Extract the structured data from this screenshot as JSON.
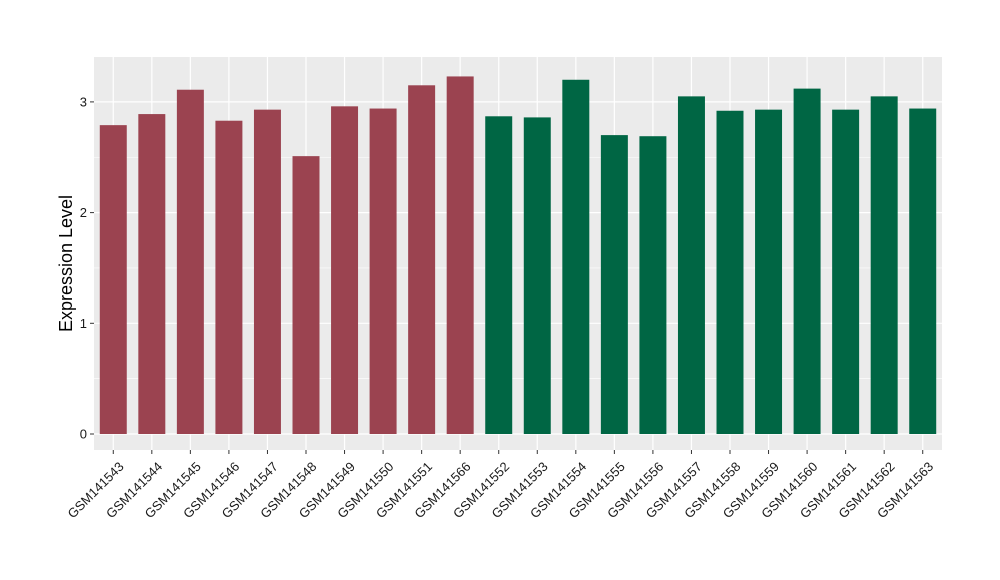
{
  "chart_data": {
    "type": "bar",
    "title": "",
    "xlabel": "",
    "ylabel": "Expression Level",
    "ylim": [
      -0.15,
      3.4
    ],
    "yticks": [
      0,
      1,
      2,
      3
    ],
    "grid": true,
    "panel_background": "#ebebeb",
    "grid_color": "#ffffff",
    "categories": [
      "GSM141543",
      "GSM141544",
      "GSM141545",
      "GSM141546",
      "GSM141547",
      "GSM141548",
      "GSM141549",
      "GSM141550",
      "GSM141551",
      "GSM141566",
      "GSM141552",
      "GSM141553",
      "GSM141554",
      "GSM141555",
      "GSM141556",
      "GSM141557",
      "GSM141558",
      "GSM141559",
      "GSM141560",
      "GSM141561",
      "GSM141562",
      "GSM141563"
    ],
    "values": [
      2.79,
      2.89,
      3.11,
      2.83,
      2.93,
      2.51,
      2.96,
      2.94,
      3.15,
      3.23,
      2.87,
      2.86,
      3.2,
      2.7,
      2.69,
      3.05,
      2.92,
      2.93,
      3.12,
      2.93,
      3.05,
      2.94
    ],
    "bar_colors": [
      "#9b4350",
      "#9b4350",
      "#9b4350",
      "#9b4350",
      "#9b4350",
      "#9b4350",
      "#9b4350",
      "#9b4350",
      "#9b4350",
      "#9b4350",
      "#006644",
      "#006644",
      "#006644",
      "#006644",
      "#006644",
      "#006644",
      "#006644",
      "#006644",
      "#006644",
      "#006644",
      "#006644",
      "#006644"
    ]
  }
}
